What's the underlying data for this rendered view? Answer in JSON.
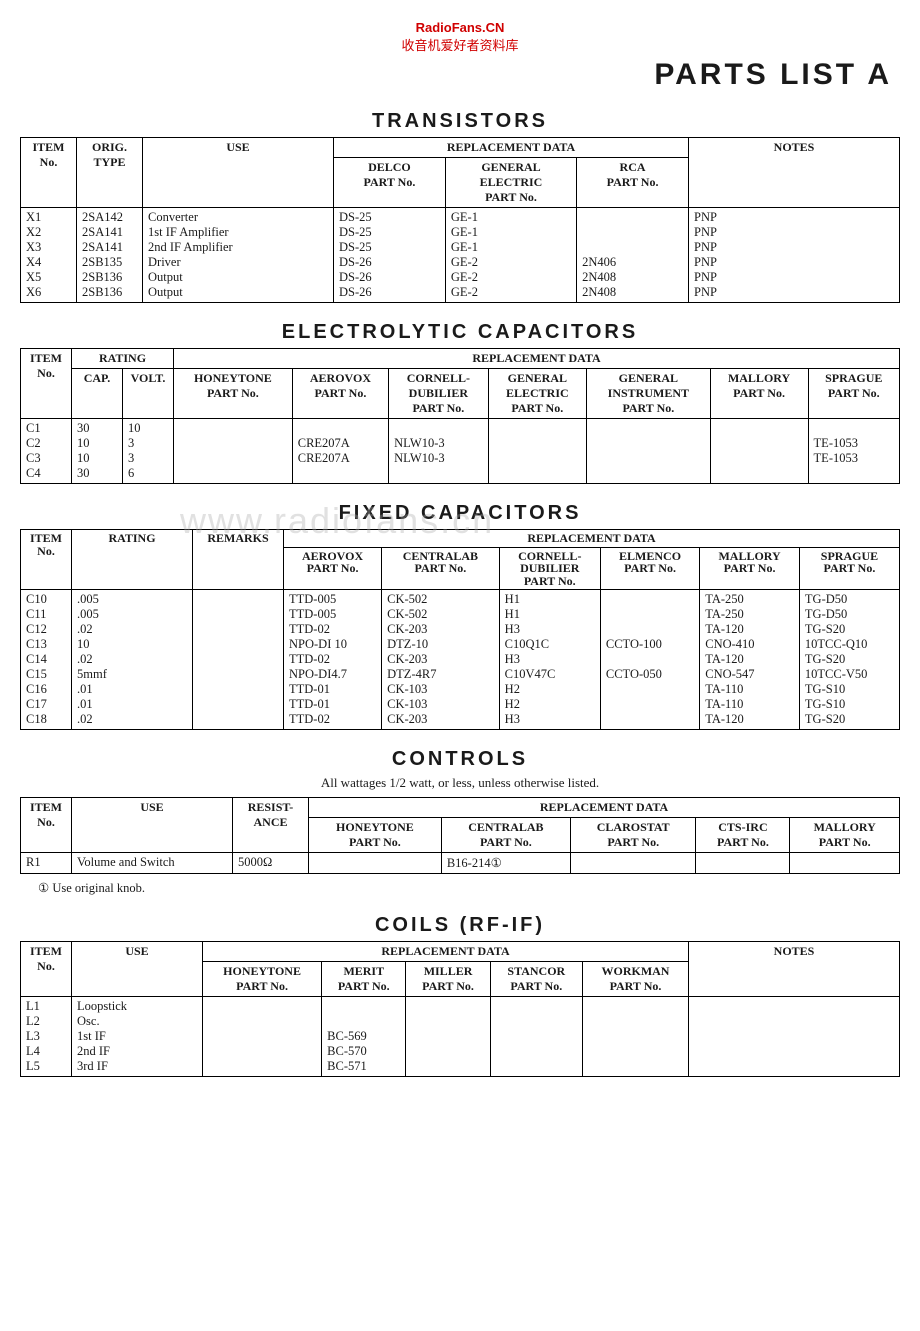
{
  "site": {
    "name": "RadioFans.CN",
    "subtitle": "收音机爱好者资料库"
  },
  "page_title": "PARTS LIST A",
  "watermark": "www.radiofans.cn",
  "transistors": {
    "title": "TRANSISTORS",
    "headers": {
      "item": "ITEM\nNo.",
      "orig": "ORIG.\nTYPE",
      "use": "USE",
      "repl": "REPLACEMENT DATA",
      "delco": "DELCO\nPART No.",
      "ge": "GENERAL\nELECTRIC\nPART No.",
      "rca": "RCA\nPART No.",
      "notes": "NOTES"
    },
    "rows": [
      {
        "item": "X1",
        "orig": "2SA142",
        "use": "Converter",
        "delco": "DS-25",
        "ge": "GE-1",
        "rca": "",
        "notes": "PNP"
      },
      {
        "item": "X2",
        "orig": "2SA141",
        "use": "1st IF Amplifier",
        "delco": "DS-25",
        "ge": "GE-1",
        "rca": "",
        "notes": "PNP"
      },
      {
        "item": "X3",
        "orig": "2SA141",
        "use": "2nd IF Amplifier",
        "delco": "DS-25",
        "ge": "GE-1",
        "rca": "",
        "notes": "PNP"
      },
      {
        "item": "X4",
        "orig": "2SB135",
        "use": "Driver",
        "delco": "DS-26",
        "ge": "GE-2",
        "rca": "2N406",
        "notes": "PNP"
      },
      {
        "item": "X5",
        "orig": "2SB136",
        "use": "Output",
        "delco": "DS-26",
        "ge": "GE-2",
        "rca": "2N408",
        "notes": "PNP"
      },
      {
        "item": "X6",
        "orig": "2SB136",
        "use": "Output",
        "delco": "DS-26",
        "ge": "GE-2",
        "rca": "2N408",
        "notes": "PNP"
      }
    ]
  },
  "electrolytics": {
    "title": "ELECTROLYTIC CAPACITORS",
    "headers": {
      "item": "ITEM\nNo.",
      "rating": "RATING",
      "cap": "CAP.",
      "volt": "VOLT.",
      "repl": "REPLACEMENT DATA",
      "honey": "HONEYTONE\nPART No.",
      "aerovox": "AEROVOX\nPART No.",
      "cd": "CORNELL-\nDUBILIER\nPART No.",
      "ge": "GENERAL\nELECTRIC\nPART No.",
      "gi": "GENERAL\nINSTRUMENT\nPART No.",
      "mallory": "MALLORY\nPART No.",
      "sprague": "SPRAGUE\nPART No."
    },
    "rows": [
      {
        "item": "C1",
        "cap": "30",
        "volt": "10",
        "honey": "",
        "aerovox": "",
        "cd": "",
        "ge": "",
        "gi": "",
        "mallory": "",
        "sprague": ""
      },
      {
        "item": "C2",
        "cap": "10",
        "volt": "3",
        "honey": "",
        "aerovox": "CRE207A",
        "cd": "NLW10-3",
        "ge": "",
        "gi": "",
        "mallory": "",
        "sprague": "TE-1053"
      },
      {
        "item": "C3",
        "cap": "10",
        "volt": "3",
        "honey": "",
        "aerovox": "CRE207A",
        "cd": "NLW10-3",
        "ge": "",
        "gi": "",
        "mallory": "",
        "sprague": "TE-1053"
      },
      {
        "item": "C4",
        "cap": "30",
        "volt": "6",
        "honey": "",
        "aerovox": "",
        "cd": "",
        "ge": "",
        "gi": "",
        "mallory": "",
        "sprague": ""
      }
    ]
  },
  "fixed_caps": {
    "title": "FIXED CAPACITORS",
    "headers": {
      "item": "ITEM\nNo.",
      "rating": "RATING",
      "remarks": "REMARKS",
      "repl": "REPLACEMENT DATA",
      "aerovox": "AEROVOX\nPART No.",
      "centralab": "CENTRALAB\nPART No.",
      "cd": "CORNELL-\nDUBILIER\nPART No.",
      "elmenco": "ELMENCO\nPART No.",
      "mallory": "MALLORY\nPART No.",
      "sprague": "SPRAGUE\nPART No."
    },
    "rows": [
      {
        "item": "C10",
        "rating": ".005",
        "remarks": "",
        "aerovox": "TTD-005",
        "centralab": "CK-502",
        "cd": "H1",
        "elmenco": "",
        "mallory": "TA-250",
        "sprague": "TG-D50"
      },
      {
        "item": "C11",
        "rating": ".005",
        "remarks": "",
        "aerovox": "TTD-005",
        "centralab": "CK-502",
        "cd": "H1",
        "elmenco": "",
        "mallory": "TA-250",
        "sprague": "TG-D50"
      },
      {
        "item": "C12",
        "rating": ".02",
        "remarks": "",
        "aerovox": "TTD-02",
        "centralab": "CK-203",
        "cd": "H3",
        "elmenco": "",
        "mallory": "TA-120",
        "sprague": "TG-S20"
      },
      {
        "item": "C13",
        "rating": "10",
        "remarks": "",
        "aerovox": "NPO-DI 10",
        "centralab": "DTZ-10",
        "cd": "C10Q1C",
        "elmenco": "CCTO-100",
        "mallory": "CNO-410",
        "sprague": "10TCC-Q10"
      },
      {
        "item": "C14",
        "rating": ".02",
        "remarks": "",
        "aerovox": "TTD-02",
        "centralab": "CK-203",
        "cd": "H3",
        "elmenco": "",
        "mallory": "TA-120",
        "sprague": "TG-S20"
      },
      {
        "item": "C15",
        "rating": "5mmf",
        "remarks": "",
        "aerovox": "NPO-DI4.7",
        "centralab": "DTZ-4R7",
        "cd": "C10V47C",
        "elmenco": "CCTO-050",
        "mallory": "CNO-547",
        "sprague": "10TCC-V50"
      },
      {
        "item": "C16",
        "rating": ".01",
        "remarks": "",
        "aerovox": "TTD-01",
        "centralab": "CK-103",
        "cd": "H2",
        "elmenco": "",
        "mallory": "TA-110",
        "sprague": "TG-S10"
      },
      {
        "item": "C17",
        "rating": ".01",
        "remarks": "",
        "aerovox": "TTD-01",
        "centralab": "CK-103",
        "cd": "H2",
        "elmenco": "",
        "mallory": "TA-110",
        "sprague": "TG-S10"
      },
      {
        "item": "C18",
        "rating": ".02",
        "remarks": "",
        "aerovox": "TTD-02",
        "centralab": "CK-203",
        "cd": "H3",
        "elmenco": "",
        "mallory": "TA-120",
        "sprague": "TG-S20"
      }
    ]
  },
  "controls": {
    "title": "CONTROLS",
    "subnote": "All wattages 1/2 watt, or less, unless otherwise listed.",
    "headers": {
      "item": "ITEM\nNo.",
      "use": "USE",
      "res": "RESIST-\nANCE",
      "repl": "REPLACEMENT DATA",
      "honey": "HONEYTONE\nPART No.",
      "centralab": "CENTRALAB\nPART No.",
      "clarostat": "CLAROSTAT\nPART No.",
      "cts": "CTS-IRC\nPART No.",
      "mallory": "MALLORY\nPART No."
    },
    "rows": [
      {
        "item": "R1",
        "use": "Volume and Switch",
        "res": "5000Ω",
        "honey": "",
        "centralab": "B16-214①",
        "clarostat": "",
        "cts": "",
        "mallory": ""
      }
    ],
    "footnote": "① Use original knob."
  },
  "coils": {
    "title": "COILS (RF-IF)",
    "headers": {
      "item": "ITEM\nNo.",
      "use": "USE",
      "repl": "REPLACEMENT DATA",
      "honey": "HONEYTONE\nPART No.",
      "merit": "MERIT\nPART No.",
      "miller": "MILLER\nPART No.",
      "stancor": "STANCOR\nPART No.",
      "workman": "WORKMAN\nPART No.",
      "notes": "NOTES"
    },
    "rows": [
      {
        "item": "L1",
        "use": "Loopstick",
        "honey": "",
        "merit": "",
        "miller": "",
        "stancor": "",
        "workman": "",
        "notes": ""
      },
      {
        "item": "L2",
        "use": "Osc.",
        "honey": "",
        "merit": "",
        "miller": "",
        "stancor": "",
        "workman": "",
        "notes": ""
      },
      {
        "item": "L3",
        "use": "1st IF",
        "honey": "",
        "merit": "BC-569",
        "miller": "",
        "stancor": "",
        "workman": "",
        "notes": ""
      },
      {
        "item": "L4",
        "use": "2nd IF",
        "honey": "",
        "merit": "BC-570",
        "miller": "",
        "stancor": "",
        "workman": "",
        "notes": ""
      },
      {
        "item": "L5",
        "use": "3rd IF",
        "honey": "",
        "merit": "BC-571",
        "miller": "",
        "stancor": "",
        "workman": "",
        "notes": ""
      }
    ]
  }
}
